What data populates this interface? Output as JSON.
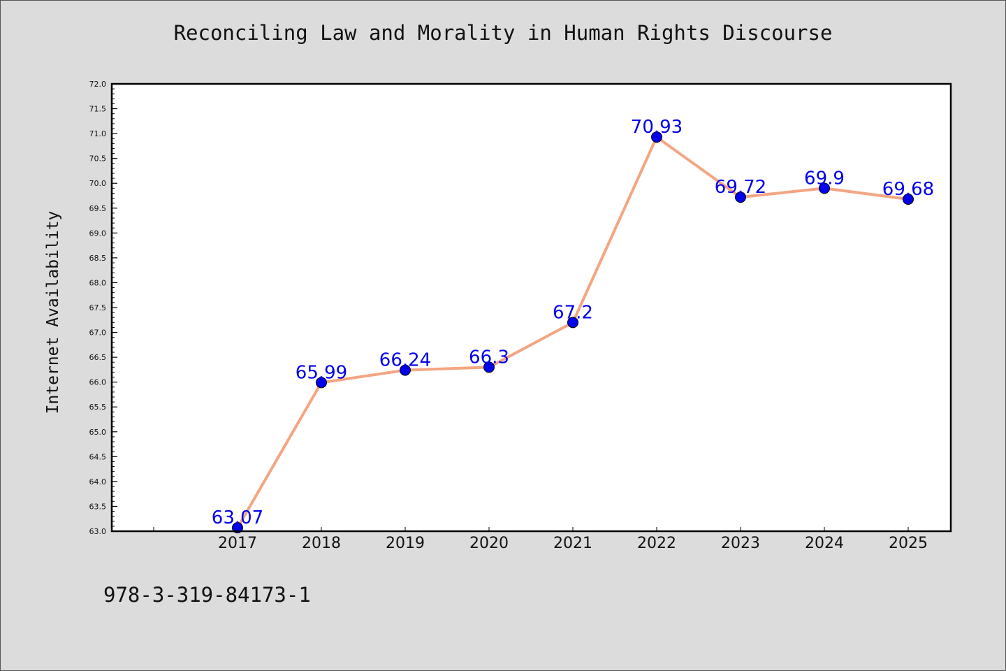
{
  "chart_data": {
    "type": "line",
    "title": "Reconciling Law and Morality in Human Rights Discourse",
    "xlabel": "",
    "ylabel": "Internet Availability",
    "categories": [
      "2017",
      "2018",
      "2019",
      "2020",
      "2021",
      "2022",
      "2023",
      "2024",
      "2025"
    ],
    "values": [
      63.07,
      65.99,
      66.24,
      66.3,
      67.2,
      70.93,
      69.72,
      69.9,
      69.68
    ],
    "data_labels": [
      "63.07",
      "65.99",
      "66.24",
      "66.3",
      "67.2",
      "70.93",
      "69.72",
      "69.9",
      "69.68"
    ],
    "ylim": [
      63.0,
      72.0
    ],
    "y_ticks": [
      "63.0",
      "63.5",
      "64.0",
      "64.5",
      "65.0",
      "65.5",
      "66.0",
      "66.5",
      "67.0",
      "67.5",
      "68.0",
      "68.5",
      "69.0",
      "69.5",
      "70.0",
      "70.5",
      "71.0",
      "71.5",
      "72.0"
    ],
    "grid": false,
    "line_color": "#f4a582",
    "marker_color": "#0000ee",
    "label_color": "#0000ee"
  },
  "footer": {
    "code": "978-3-319-84173-1"
  }
}
